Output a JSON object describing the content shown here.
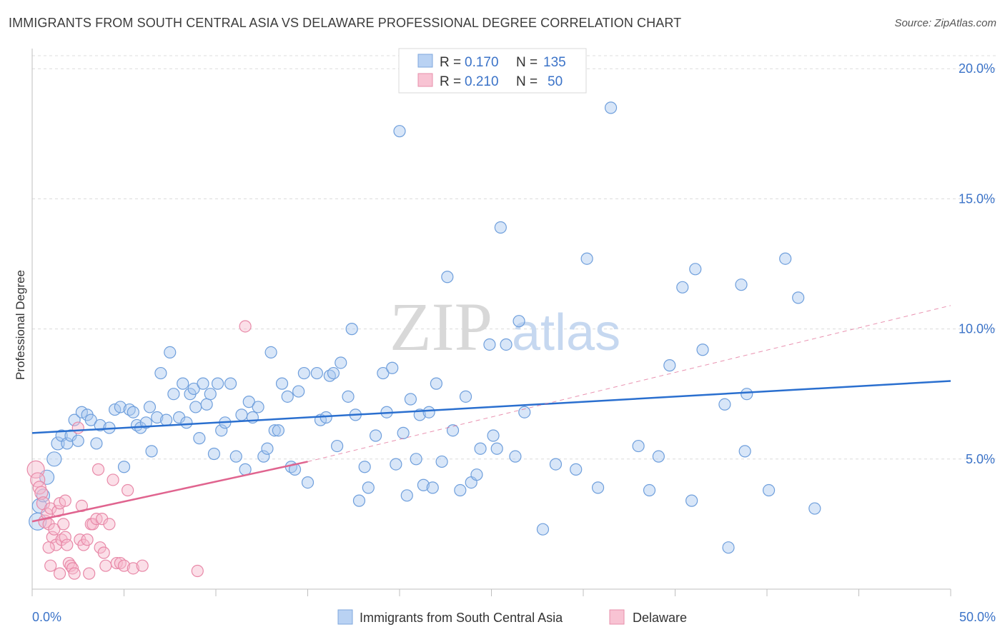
{
  "title": "IMMIGRANTS FROM SOUTH CENTRAL ASIA VS DELAWARE PROFESSIONAL DEGREE CORRELATION CHART",
  "source": "Source: ZipAtlas.com",
  "watermark": {
    "zip": "ZIP",
    "atlas": "atlas"
  },
  "colors": {
    "blue_fill": "#a9c7f0",
    "blue_stroke": "#6f9fdc",
    "blue_line": "#2a6fcf",
    "pink_fill": "#f6b8cb",
    "pink_stroke": "#e889a8",
    "pink_line": "#e0648f",
    "axis_text": "#3b73c8",
    "grid": "#dcdcdc"
  },
  "legend_top": [
    {
      "r_label": "R = ",
      "r_value": "0.170",
      "n_label": "N = ",
      "n_value": "135",
      "series": "blue"
    },
    {
      "r_label": "R = ",
      "r_value": "0.210",
      "n_label": "N = ",
      "n_value": "50",
      "series": "pink"
    }
  ],
  "chart_data": {
    "type": "scatter",
    "title": "IMMIGRANTS FROM SOUTH CENTRAL ASIA VS DELAWARE PROFESSIONAL DEGREE CORRELATION CHART",
    "ylabel": "Professional Degree",
    "xlim": [
      0,
      50
    ],
    "ylim": [
      0,
      20.5
    ],
    "x_tick_labels": [
      "0.0%",
      "50.0%"
    ],
    "y_ticks": [
      5,
      10,
      15,
      20
    ],
    "y_tick_labels": [
      "5.0%",
      "10.0%",
      "15.0%",
      "20.0%"
    ],
    "legend_bottom": [
      "Immigrants from South Central Asia",
      "Delaware"
    ],
    "series": [
      {
        "name": "Immigrants from South Central Asia",
        "color": "blue",
        "trend": {
          "x0": 0,
          "y0": 6.0,
          "x1": 50,
          "y1": 8.0
        },
        "points": [
          [
            0.3,
            2.6,
            12
          ],
          [
            0.4,
            3.2,
            10
          ],
          [
            0.6,
            3.6,
            9
          ],
          [
            0.8,
            4.3,
            10
          ],
          [
            1.2,
            5.0,
            10
          ],
          [
            1.4,
            5.6,
            9
          ],
          [
            1.6,
            5.9,
            8
          ],
          [
            1.9,
            5.6,
            8
          ],
          [
            2.1,
            5.9,
            8
          ],
          [
            2.3,
            6.5,
            8
          ],
          [
            2.5,
            5.7,
            8
          ],
          [
            2.7,
            6.8,
            8
          ],
          [
            3.0,
            6.7,
            8
          ],
          [
            3.2,
            6.5,
            8
          ],
          [
            3.5,
            5.6,
            8
          ],
          [
            3.7,
            6.3,
            8
          ],
          [
            4.2,
            6.2,
            8
          ],
          [
            4.5,
            6.9,
            8
          ],
          [
            4.8,
            7.0,
            8
          ],
          [
            5.0,
            4.7,
            8
          ],
          [
            5.3,
            6.9,
            8
          ],
          [
            5.5,
            6.8,
            8
          ],
          [
            5.7,
            6.3,
            8
          ],
          [
            5.9,
            6.2,
            8
          ],
          [
            6.2,
            6.4,
            8
          ],
          [
            6.4,
            7.0,
            8
          ],
          [
            6.5,
            5.3,
            8
          ],
          [
            6.8,
            6.6,
            8
          ],
          [
            7.0,
            8.3,
            8
          ],
          [
            7.3,
            6.5,
            8
          ],
          [
            7.5,
            9.1,
            8
          ],
          [
            7.7,
            7.5,
            8
          ],
          [
            8.0,
            6.6,
            8
          ],
          [
            8.2,
            7.9,
            8
          ],
          [
            8.4,
            6.4,
            8
          ],
          [
            8.6,
            7.5,
            8
          ],
          [
            8.8,
            7.7,
            8
          ],
          [
            8.9,
            7.0,
            8
          ],
          [
            9.1,
            5.8,
            8
          ],
          [
            9.3,
            7.9,
            8
          ],
          [
            9.5,
            7.1,
            8
          ],
          [
            9.7,
            7.5,
            8
          ],
          [
            9.9,
            5.2,
            8
          ],
          [
            10.1,
            7.9,
            8
          ],
          [
            10.3,
            6.1,
            8
          ],
          [
            10.5,
            6.4,
            8
          ],
          [
            10.8,
            7.9,
            8
          ],
          [
            11.1,
            5.1,
            8
          ],
          [
            11.4,
            6.7,
            8
          ],
          [
            11.6,
            4.6,
            8
          ],
          [
            11.8,
            7.2,
            8
          ],
          [
            12.0,
            6.6,
            8
          ],
          [
            12.3,
            7.0,
            8
          ],
          [
            12.6,
            5.1,
            8
          ],
          [
            12.8,
            5.4,
            8
          ],
          [
            13.0,
            9.1,
            8
          ],
          [
            13.2,
            6.1,
            8
          ],
          [
            13.4,
            6.1,
            8
          ],
          [
            13.6,
            7.9,
            8
          ],
          [
            13.9,
            7.4,
            8
          ],
          [
            14.1,
            4.7,
            8
          ],
          [
            14.3,
            4.6,
            8
          ],
          [
            14.5,
            7.6,
            8
          ],
          [
            14.8,
            8.3,
            8
          ],
          [
            15.0,
            4.1,
            8
          ],
          [
            15.5,
            8.3,
            8
          ],
          [
            15.7,
            6.5,
            8
          ],
          [
            16.0,
            6.6,
            8
          ],
          [
            16.2,
            8.2,
            8
          ],
          [
            16.4,
            8.3,
            8
          ],
          [
            16.6,
            5.5,
            8
          ],
          [
            16.8,
            8.7,
            8
          ],
          [
            17.2,
            7.4,
            8
          ],
          [
            17.4,
            10.0,
            8
          ],
          [
            17.6,
            6.7,
            8
          ],
          [
            17.8,
            3.4,
            8
          ],
          [
            18.1,
            4.7,
            8
          ],
          [
            18.3,
            3.9,
            8
          ],
          [
            18.7,
            5.9,
            8
          ],
          [
            19.1,
            8.3,
            8
          ],
          [
            19.3,
            6.8,
            8
          ],
          [
            19.6,
            8.5,
            8
          ],
          [
            19.8,
            4.8,
            8
          ],
          [
            20.0,
            17.6,
            8
          ],
          [
            20.2,
            6.0,
            8
          ],
          [
            20.4,
            3.6,
            8
          ],
          [
            20.6,
            7.3,
            8
          ],
          [
            20.9,
            5.0,
            8
          ],
          [
            21.1,
            6.7,
            8
          ],
          [
            21.3,
            4.0,
            8
          ],
          [
            21.6,
            6.8,
            8
          ],
          [
            21.8,
            3.9,
            8
          ],
          [
            22.0,
            7.9,
            8
          ],
          [
            22.3,
            4.9,
            8
          ],
          [
            22.6,
            12.0,
            8
          ],
          [
            22.9,
            6.1,
            8
          ],
          [
            23.3,
            3.8,
            8
          ],
          [
            23.6,
            7.4,
            8
          ],
          [
            23.9,
            4.1,
            8
          ],
          [
            24.2,
            4.4,
            8
          ],
          [
            24.4,
            5.4,
            8
          ],
          [
            24.9,
            9.4,
            8
          ],
          [
            25.1,
            5.9,
            8
          ],
          [
            25.3,
            5.4,
            8
          ],
          [
            25.5,
            13.9,
            8
          ],
          [
            25.8,
            9.4,
            8
          ],
          [
            26.3,
            5.1,
            8
          ],
          [
            26.5,
            10.3,
            8
          ],
          [
            26.8,
            6.8,
            8
          ],
          [
            27.8,
            2.3,
            8
          ],
          [
            28.5,
            4.8,
            8
          ],
          [
            29.6,
            4.6,
            8
          ],
          [
            30.2,
            12.7,
            8
          ],
          [
            30.8,
            3.9,
            8
          ],
          [
            31.5,
            18.5,
            8
          ],
          [
            33.0,
            5.5,
            8
          ],
          [
            33.6,
            3.8,
            8
          ],
          [
            34.1,
            5.1,
            8
          ],
          [
            34.7,
            8.6,
            8
          ],
          [
            35.4,
            11.6,
            8
          ],
          [
            35.9,
            3.4,
            8
          ],
          [
            36.1,
            12.3,
            8
          ],
          [
            36.5,
            9.2,
            8
          ],
          [
            37.7,
            7.1,
            8
          ],
          [
            37.9,
            1.6,
            8
          ],
          [
            38.6,
            11.7,
            8
          ],
          [
            38.8,
            5.3,
            8
          ],
          [
            38.9,
            7.5,
            8
          ],
          [
            40.1,
            3.8,
            8
          ],
          [
            41.7,
            11.2,
            8
          ],
          [
            41.0,
            12.7,
            8
          ],
          [
            42.6,
            3.1,
            8
          ]
        ]
      },
      {
        "name": "Delaware",
        "color": "pink",
        "trend": {
          "x0": 0,
          "y0": 2.6,
          "x1": 15,
          "y1": 4.9
        },
        "trend_dashed": {
          "x0": 15,
          "y0": 4.9,
          "x1": 50,
          "y1": 10.9
        },
        "points": [
          [
            0.2,
            4.6,
            12
          ],
          [
            0.3,
            4.2,
            10
          ],
          [
            0.4,
            3.9,
            9
          ],
          [
            0.5,
            3.7,
            9
          ],
          [
            0.6,
            3.3,
            9
          ],
          [
            0.7,
            2.6,
            9
          ],
          [
            0.8,
            2.9,
            8
          ],
          [
            0.9,
            2.5,
            8
          ],
          [
            1.0,
            3.1,
            8
          ],
          [
            1.1,
            2.0,
            8
          ],
          [
            1.2,
            2.3,
            8
          ],
          [
            1.3,
            1.7,
            8
          ],
          [
            1.4,
            3.0,
            8
          ],
          [
            1.5,
            3.3,
            8
          ],
          [
            1.6,
            1.9,
            8
          ],
          [
            1.7,
            2.5,
            8
          ],
          [
            1.8,
            2.0,
            8
          ],
          [
            1.9,
            1.7,
            8
          ],
          [
            2.0,
            1.0,
            8
          ],
          [
            2.1,
            0.9,
            8
          ],
          [
            2.2,
            0.8,
            8
          ],
          [
            2.3,
            0.6,
            8
          ],
          [
            1.0,
            0.9,
            8
          ],
          [
            1.5,
            0.6,
            8
          ],
          [
            2.5,
            6.2,
            8
          ],
          [
            2.6,
            1.9,
            8
          ],
          [
            2.7,
            3.2,
            8
          ],
          [
            2.8,
            1.7,
            8
          ],
          [
            3.0,
            1.9,
            8
          ],
          [
            3.1,
            0.6,
            8
          ],
          [
            3.2,
            2.5,
            8
          ],
          [
            3.3,
            2.5,
            8
          ],
          [
            3.5,
            2.7,
            8
          ],
          [
            3.6,
            4.6,
            8
          ],
          [
            3.7,
            1.6,
            8
          ],
          [
            3.8,
            2.7,
            8
          ],
          [
            3.9,
            1.4,
            8
          ],
          [
            4.0,
            0.9,
            8
          ],
          [
            4.2,
            2.5,
            8
          ],
          [
            4.4,
            4.2,
            8
          ],
          [
            4.6,
            1.0,
            8
          ],
          [
            4.8,
            1.0,
            8
          ],
          [
            5.0,
            0.9,
            8
          ],
          [
            5.2,
            3.8,
            8
          ],
          [
            5.5,
            0.8,
            8
          ],
          [
            6.0,
            0.9,
            8
          ],
          [
            9.0,
            0.7,
            8
          ],
          [
            11.6,
            10.1,
            8
          ],
          [
            0.9,
            1.6,
            8
          ],
          [
            1.8,
            3.4,
            8
          ]
        ]
      }
    ]
  }
}
